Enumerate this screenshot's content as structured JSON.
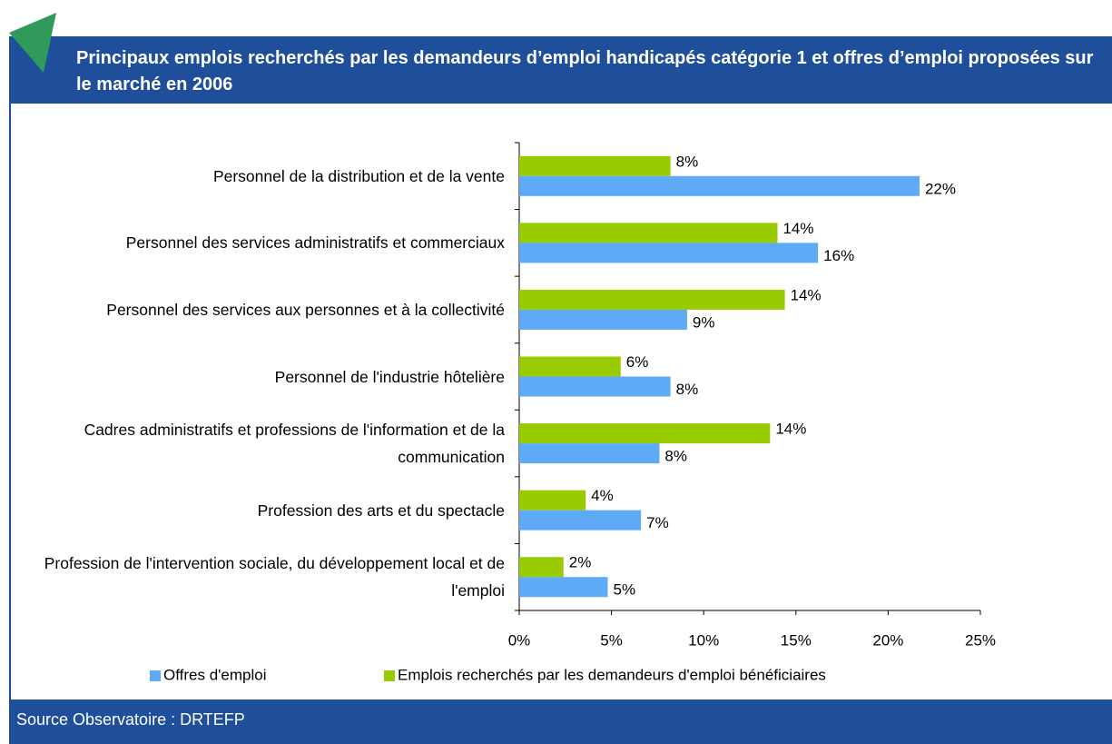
{
  "chart_data": {
    "type": "barh",
    "title": "Principaux emplois recherchés par les demandeurs d’emploi handicapés catégorie 1 et offres d’emploi proposées sur le marché en 2006",
    "source": "Source Observatoire : DRTEFP",
    "categories": [
      "Personnel de la distribution et de la vente",
      "Personnel des services administratifs et commerciaux",
      "Personnel des services aux personnes et à la collectivité",
      "Personnel de l'industrie hôtelière",
      "Cadres administratifs et professions de l'information et de la communication",
      "Profession des arts et du spectacle",
      "Profession de l'intervention sociale, du développement local et de l'emploi"
    ],
    "series": [
      {
        "name": "Offres d'emploi",
        "color": "#5eaaf7",
        "values": [
          21.7,
          16.2,
          9.1,
          8.2,
          7.6,
          6.6,
          4.8
        ],
        "value_labels": [
          "22%",
          "16%",
          "9%",
          "8%",
          "8%",
          "7%",
          "5%"
        ]
      },
      {
        "name": "Emplois recherchés par les demandeurs d'emploi bénéficiaires",
        "color": "#99cc00",
        "values": [
          8.2,
          14.0,
          14.4,
          5.5,
          13.6,
          3.6,
          2.4
        ],
        "value_labels": [
          "8%",
          "14%",
          "14%",
          "6%",
          "14%",
          "4%",
          "2%"
        ]
      }
    ],
    "xlim": [
      0,
      25
    ],
    "xticks": [
      {
        "value": 0,
        "label": "0%"
      },
      {
        "value": 5,
        "label": "5%"
      },
      {
        "value": 10,
        "label": "10%"
      },
      {
        "value": 15,
        "label": "15%"
      },
      {
        "value": 20,
        "label": "20%"
      },
      {
        "value": 25,
        "label": "25%"
      }
    ],
    "legend": "bottom"
  }
}
